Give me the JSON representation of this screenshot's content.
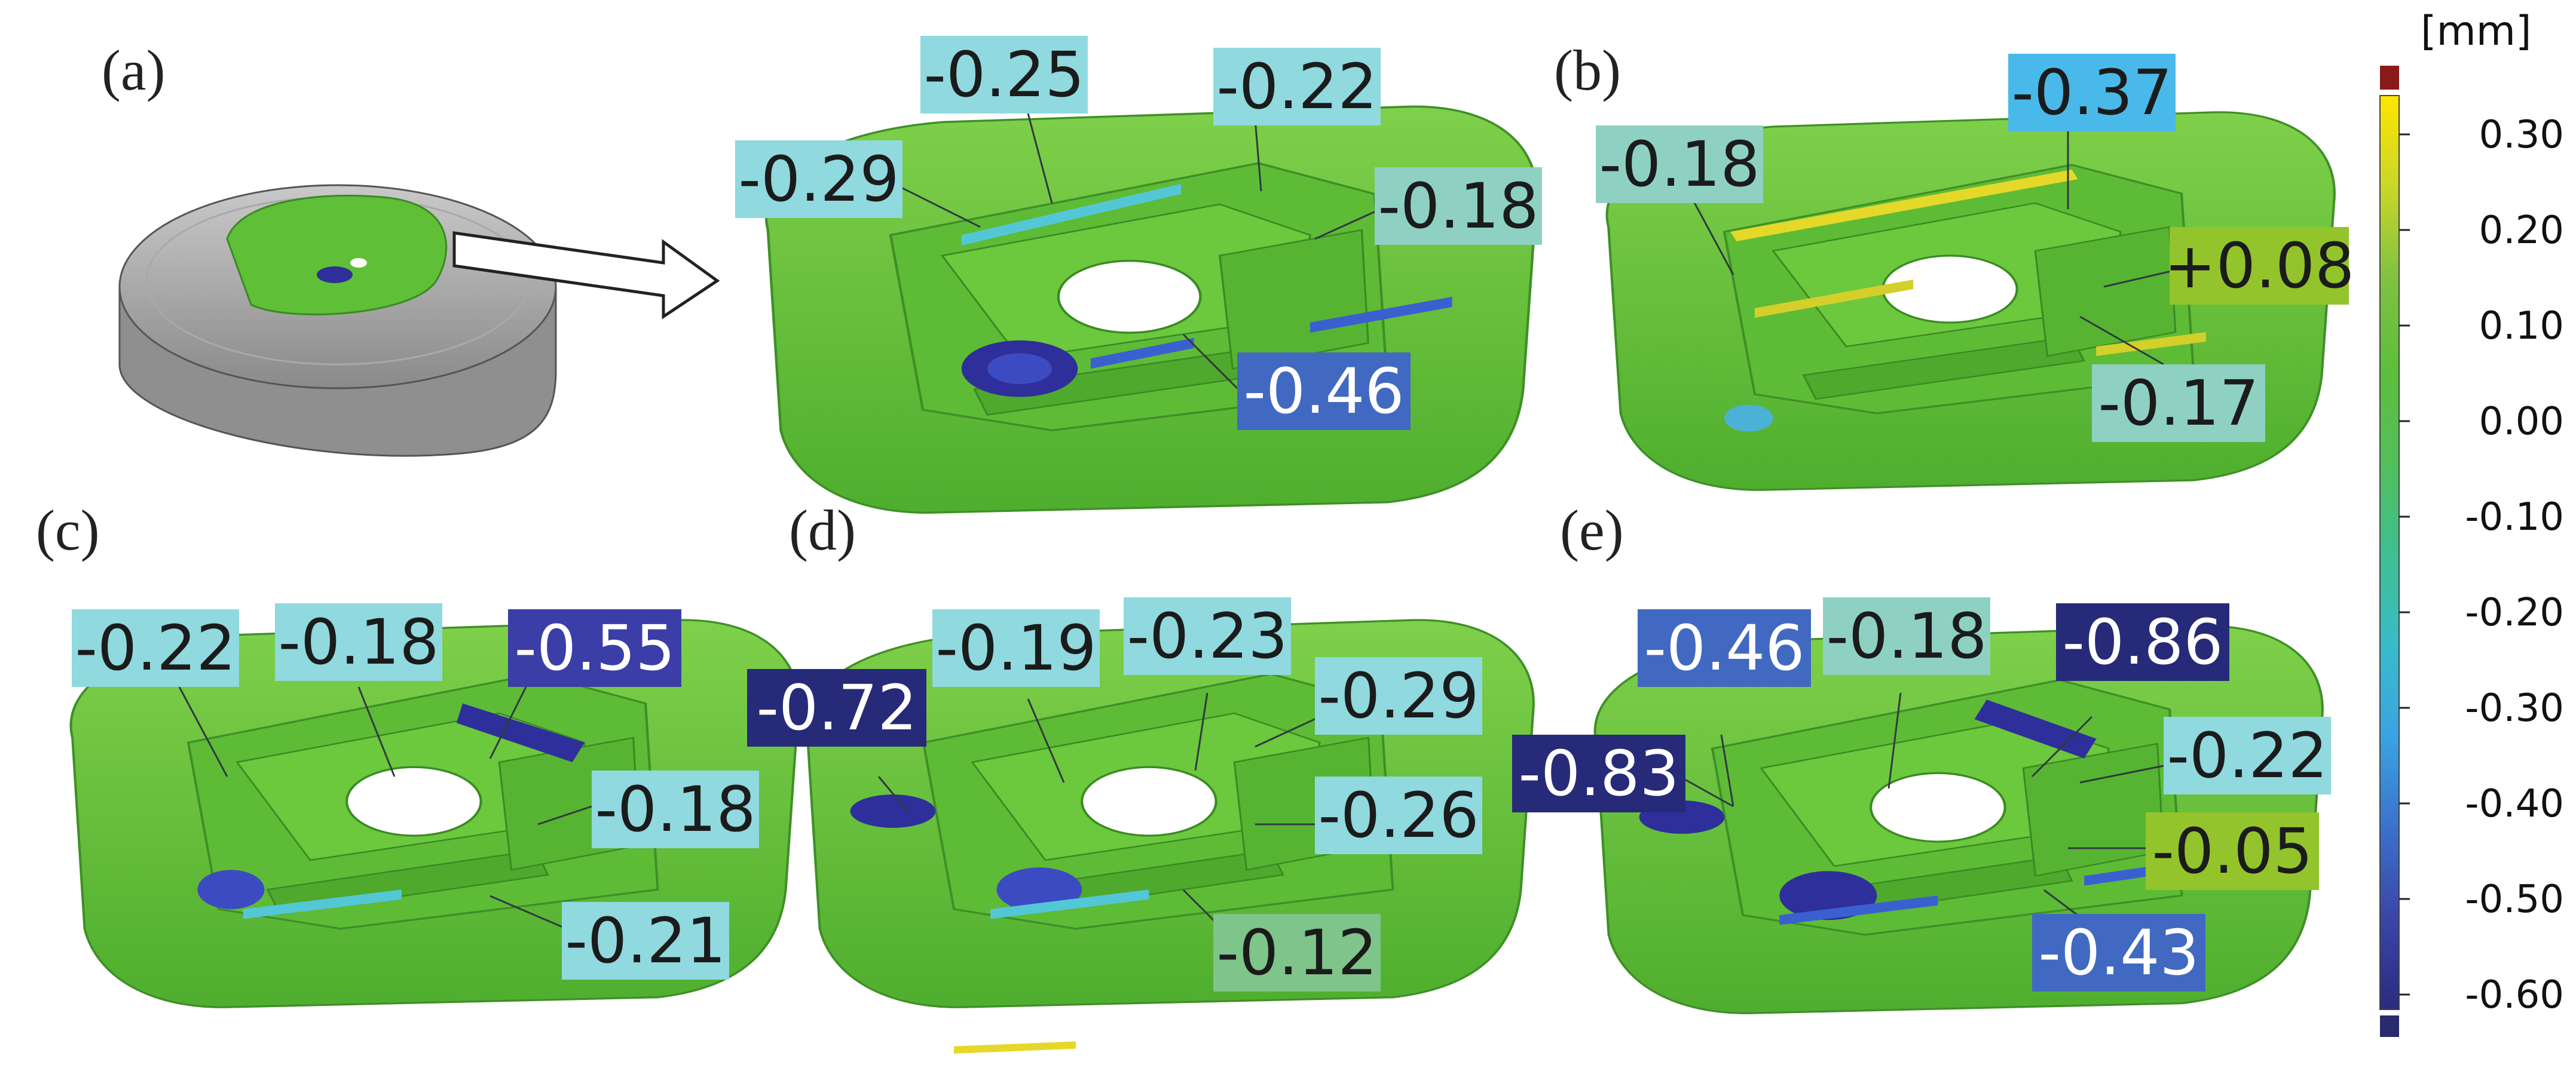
{
  "figure": {
    "panels": [
      {
        "letter": "(a)",
        "labels": [
          {
            "text": "-0.29",
            "color": "#8fd9df",
            "textColor": "#1b1b1b"
          },
          {
            "text": "-0.25",
            "color": "#8fd9df",
            "textColor": "#1b1b1b"
          },
          {
            "text": "-0.22",
            "color": "#8fd9df",
            "textColor": "#1b1b1b"
          },
          {
            "text": "-0.18",
            "color": "#8ed1c3",
            "textColor": "#1b1b1b"
          },
          {
            "text": "-0.46",
            "color": "#4169c2",
            "textColor": "#ffffff"
          }
        ]
      },
      {
        "letter": "(b)",
        "labels": [
          {
            "text": "-0.18",
            "color": "#8ed1c3",
            "textColor": "#1b1b1b"
          },
          {
            "text": "-0.37",
            "color": "#49b9ea",
            "textColor": "#1b1b1b"
          },
          {
            "text": "+0.08",
            "color": "#93c42b",
            "textColor": "#1b1b1b"
          },
          {
            "text": "-0.17",
            "color": "#8ed1c3",
            "textColor": "#1b1b1b"
          }
        ]
      },
      {
        "letter": "(c)",
        "labels": [
          {
            "text": "-0.22",
            "color": "#8fd9df",
            "textColor": "#1b1b1b"
          },
          {
            "text": "-0.18",
            "color": "#8fd9df",
            "textColor": "#1b1b1b"
          },
          {
            "text": "-0.55",
            "color": "#3a3ea6",
            "textColor": "#ffffff"
          },
          {
            "text": "-0.18",
            "color": "#8fd9df",
            "textColor": "#1b1b1b"
          },
          {
            "text": "-0.21",
            "color": "#8fd9df",
            "textColor": "#1b1b1b"
          }
        ]
      },
      {
        "letter": "(d)",
        "labels": [
          {
            "text": "-0.72",
            "color": "#272a78",
            "textColor": "#ffffff"
          },
          {
            "text": "-0.19",
            "color": "#8fd9df",
            "textColor": "#1b1b1b"
          },
          {
            "text": "-0.23",
            "color": "#8fd9df",
            "textColor": "#1b1b1b"
          },
          {
            "text": "-0.29",
            "color": "#8fd9df",
            "textColor": "#1b1b1b"
          },
          {
            "text": "-0.26",
            "color": "#8fd9df",
            "textColor": "#1b1b1b"
          },
          {
            "text": "-0.12",
            "color": "#7fc48a",
            "textColor": "#1b1b1b"
          }
        ]
      },
      {
        "letter": "(e)",
        "labels": [
          {
            "text": "-0.46",
            "color": "#4169c2",
            "textColor": "#ffffff"
          },
          {
            "text": "-0.18",
            "color": "#8ed1c3",
            "textColor": "#1b1b1b"
          },
          {
            "text": "-0.86",
            "color": "#272a78",
            "textColor": "#ffffff"
          },
          {
            "text": "-0.83",
            "color": "#272a78",
            "textColor": "#ffffff"
          },
          {
            "text": "-0.22",
            "color": "#8fd9df",
            "textColor": "#1b1b1b"
          },
          {
            "text": "-0.05",
            "color": "#93c42b",
            "textColor": "#1b1b1b"
          },
          {
            "text": "-0.43",
            "color": "#4169c2",
            "textColor": "#ffffff"
          }
        ]
      }
    ]
  },
  "colorbar": {
    "unit": "[mm]",
    "ticks": [
      "0.30",
      "0.20",
      "0.10",
      "0.00",
      "-0.10",
      "-0.20",
      "-0.30",
      "-0.40",
      "-0.50",
      "-0.60"
    ],
    "over_color": "#8b1a1a",
    "under_color": "#2a2a6e",
    "gradient": [
      "#ffe600",
      "#c9d62a",
      "#7fc241",
      "#5cbf3a",
      "#52bf5a",
      "#3fbf8f",
      "#38bcc8",
      "#3aa4e3",
      "#3a72cc",
      "#3a46a8",
      "#2b2a80"
    ]
  }
}
